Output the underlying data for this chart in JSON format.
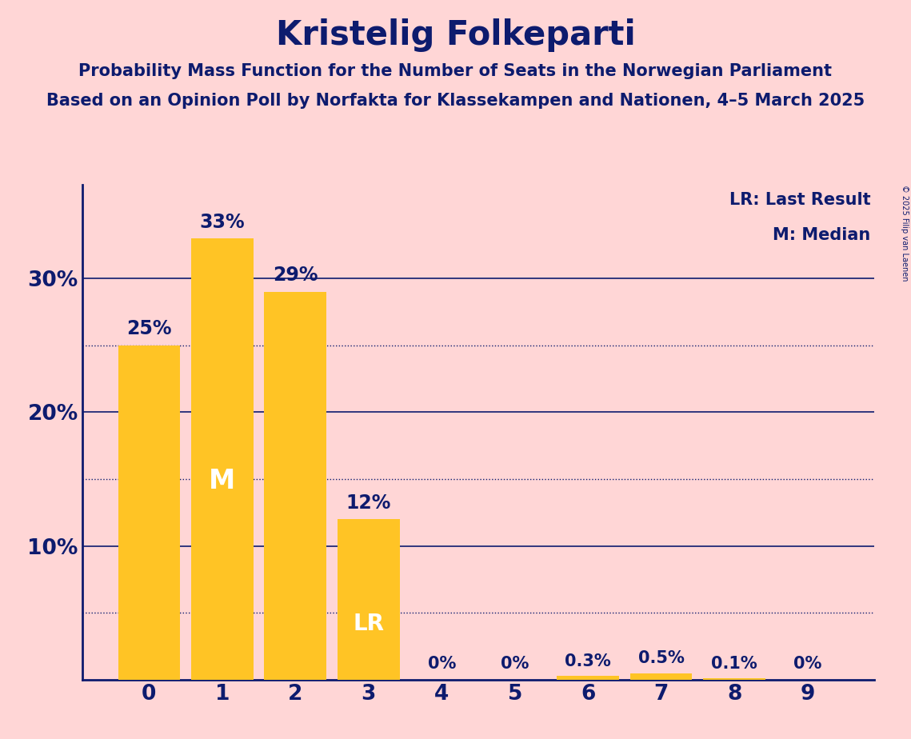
{
  "title": "Kristelig Folkeparti",
  "subtitle1": "Probability Mass Function for the Number of Seats in the Norwegian Parliament",
  "subtitle2": "Based on an Opinion Poll by Norfakta for Klassekampen and Nationen, 4–5 March 2025",
  "copyright": "© 2025 Filip van Laenen",
  "categories": [
    0,
    1,
    2,
    3,
    4,
    5,
    6,
    7,
    8,
    9
  ],
  "values": [
    25,
    33,
    29,
    12,
    0,
    0,
    0.3,
    0.5,
    0.1,
    0
  ],
  "bar_color": "#FFC425",
  "background_color": "#FFD6D6",
  "text_color": "#0D1B6E",
  "label_texts": [
    "25%",
    "33%",
    "29%",
    "12%",
    "0%",
    "0%",
    "0.3%",
    "0.5%",
    "0.1%",
    "0%"
  ],
  "median_bar": 1,
  "lr_bar": 3,
  "median_label": "M",
  "lr_label": "LR",
  "legend_lr": "LR: Last Result",
  "legend_m": "M: Median",
  "yticks": [
    10,
    20,
    30
  ],
  "ytick_labels": [
    "10%",
    "20%",
    "30%"
  ],
  "dotted_lines": [
    25,
    15,
    5
  ],
  "ylim": [
    0,
    37
  ],
  "title_fontsize": 30,
  "subtitle_fontsize": 15,
  "bar_label_fontsize": 17,
  "ytick_fontsize": 19,
  "xtick_fontsize": 19,
  "legend_fontsize": 15,
  "median_label_fontsize": 24,
  "lr_label_fontsize": 20
}
